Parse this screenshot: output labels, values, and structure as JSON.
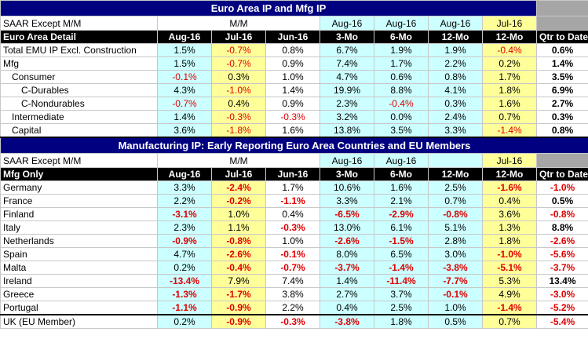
{
  "top": {
    "title": "Euro Area IP and Mfg IP",
    "units": "SAAR Except M/M",
    "detail_label": "Euro Area Detail",
    "period_row": [
      "",
      "",
      "",
      "Aug-16",
      "Aug-16",
      "Aug-16",
      "Jul-16",
      ""
    ],
    "mm_label": "M/M",
    "headers": [
      "Aug-16",
      "Jul-16",
      "Jun-16",
      "3-Mo",
      "6-Mo",
      "12-Mo",
      "12-Mo",
      "Qtr to Date"
    ],
    "rows": [
      {
        "label": "Total EMU IP Excl. Construction",
        "indent": 0,
        "v": [
          "1.5%",
          "-0.7%",
          "0.8%",
          "6.7%",
          "1.9%",
          "1.9%",
          "-0.4%",
          "0.6%"
        ]
      },
      {
        "label": "Mfg",
        "indent": 0,
        "v": [
          "1.5%",
          "-0.7%",
          "0.9%",
          "7.4%",
          "1.7%",
          "2.2%",
          "0.2%",
          "1.4%"
        ]
      },
      {
        "label": "Consumer",
        "indent": 1,
        "v": [
          "-0.1%",
          "0.3%",
          "1.0%",
          "4.7%",
          "0.6%",
          "0.8%",
          "1.7%",
          "3.5%"
        ]
      },
      {
        "label": "C-Durables",
        "indent": 2,
        "v": [
          "4.3%",
          "-1.0%",
          "1.4%",
          "19.9%",
          "8.8%",
          "4.1%",
          "1.8%",
          "6.9%"
        ]
      },
      {
        "label": "C-Nondurables",
        "indent": 2,
        "v": [
          "-0.7%",
          "0.4%",
          "0.9%",
          "2.3%",
          "-0.4%",
          "0.3%",
          "1.6%",
          "2.7%"
        ]
      },
      {
        "label": "Intermediate",
        "indent": 1,
        "v": [
          "1.4%",
          "-0.3%",
          "-0.3%",
          "3.2%",
          "0.0%",
          "2.4%",
          "0.7%",
          "0.3%"
        ]
      },
      {
        "label": "Capital",
        "indent": 1,
        "v": [
          "3.6%",
          "-1.8%",
          "1.6%",
          "13.8%",
          "3.5%",
          "3.3%",
          "-1.4%",
          "0.8%"
        ]
      }
    ]
  },
  "bottom": {
    "title": "Manufacturing IP: Early Reporting Euro Area Countries and EU Members",
    "units": "SAAR Except M/M",
    "mm_label": "M/M",
    "period_row": [
      "Aug-16",
      "Aug-16",
      "",
      "Jul-16"
    ],
    "detail_label": "Mfg Only",
    "headers": [
      "Aug-16",
      "Jul-16",
      "Jun-16",
      "3-Mo",
      "6-Mo",
      "12-Mo",
      "12-Mo",
      "Qtr to Date"
    ],
    "rows": [
      {
        "label": "Germany",
        "v": [
          "3.3%",
          "-2.4%",
          "1.7%",
          "10.6%",
          "1.6%",
          "2.5%",
          "-1.6%",
          "-1.0%"
        ]
      },
      {
        "label": "France",
        "v": [
          "2.2%",
          "-0.2%",
          "-1.1%",
          "3.3%",
          "2.1%",
          "0.7%",
          "0.4%",
          "0.5%"
        ]
      },
      {
        "label": "Finland",
        "v": [
          "-3.1%",
          "1.0%",
          "0.4%",
          "-6.5%",
          "-2.9%",
          "-0.8%",
          "3.6%",
          "-0.8%"
        ]
      },
      {
        "label": "Italy",
        "v": [
          "2.3%",
          "1.1%",
          "-0.3%",
          "13.0%",
          "6.1%",
          "5.1%",
          "1.3%",
          "8.8%"
        ]
      },
      {
        "label": "Netherlands",
        "v": [
          "-0.9%",
          "-0.8%",
          "1.0%",
          "-2.6%",
          "-1.5%",
          "2.8%",
          "1.8%",
          "-2.6%"
        ]
      },
      {
        "label": "Spain",
        "v": [
          "4.7%",
          "-2.6%",
          "-0.1%",
          "8.0%",
          "6.5%",
          "3.0%",
          "-1.0%",
          "-5.6%"
        ]
      },
      {
        "label": "Malta",
        "v": [
          "0.2%",
          "-0.4%",
          "-0.7%",
          "-3.7%",
          "-1.4%",
          "-3.8%",
          "-5.1%",
          "-3.7%"
        ]
      },
      {
        "label": "Ireland",
        "v": [
          "-13.4%",
          "7.9%",
          "7.4%",
          "1.4%",
          "-11.4%",
          "-7.7%",
          "5.3%",
          "13.4%"
        ]
      },
      {
        "label": "Greece",
        "v": [
          "-1.3%",
          "-1.7%",
          "3.8%",
          "2.7%",
          "3.7%",
          "-0.1%",
          "4.9%",
          "-3.0%"
        ]
      },
      {
        "label": "Portugal",
        "v": [
          "-1.1%",
          "-0.9%",
          "2.2%",
          "0.4%",
          "2.5%",
          "1.0%",
          "-1.4%",
          "-5.2%"
        ]
      },
      {
        "label": "UK (EU Member)",
        "v": [
          "0.2%",
          "-0.9%",
          "-0.3%",
          "-3.8%",
          "1.8%",
          "0.5%",
          "0.7%",
          "-5.4%"
        ]
      }
    ]
  },
  "colors": {
    "negative": "#e00000",
    "header_blue": "#000080",
    "cyan": "#ccffff",
    "yellow": "#ffff99",
    "grey": "#a6a6a6"
  }
}
